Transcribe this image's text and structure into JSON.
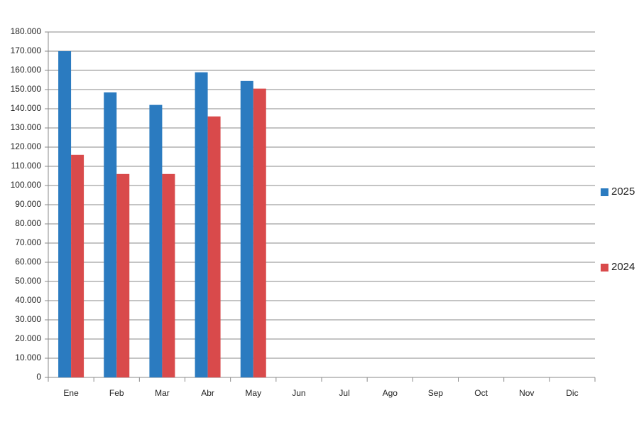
{
  "chart_data": {
    "type": "bar",
    "categories": [
      "Ene",
      "Feb",
      "Mar",
      "Abr",
      "May",
      "Jun",
      "Jul",
      "Ago",
      "Sep",
      "Oct",
      "Nov",
      "Dic"
    ],
    "series": [
      {
        "name": "2025",
        "color": "#2b7bc0",
        "values": [
          170000,
          148500,
          142000,
          159000,
          154500,
          null,
          null,
          null,
          null,
          null,
          null,
          null
        ]
      },
      {
        "name": "2024",
        "color": "#d94a4b",
        "values": [
          116000,
          106000,
          106000,
          136000,
          150500,
          null,
          null,
          null,
          null,
          null,
          null,
          null
        ]
      }
    ],
    "ylim": [
      0,
      180000
    ],
    "yticks": [
      0,
      {
        "value": 10000,
        "label": "10.000"
      },
      {
        "value": 20000,
        "label": "20.000"
      },
      {
        "value": 30000,
        "label": "30.000"
      },
      {
        "value": 40000,
        "label": "40.000"
      },
      {
        "value": 50000,
        "label": "50.000"
      },
      {
        "value": 60000,
        "label": "60.000"
      },
      {
        "value": 70000,
        "label": "70.000"
      },
      {
        "value": 80000,
        "label": "80.000"
      },
      {
        "value": 90000,
        "label": "90.000"
      },
      {
        "value": 100000,
        "label": "100.000"
      },
      {
        "value": 110000,
        "label": "110.000"
      },
      {
        "value": 120000,
        "label": "120.000"
      },
      {
        "value": 130000,
        "label": "130.000"
      },
      {
        "value": 140000,
        "label": "140.000"
      },
      {
        "value": 150000,
        "label": "150.000"
      },
      {
        "value": 160000,
        "label": "160.000"
      },
      {
        "value": 170000,
        "label": "170.000"
      },
      {
        "value": 180000,
        "label": "180.000"
      }
    ],
    "grid": true,
    "legend": "right"
  }
}
